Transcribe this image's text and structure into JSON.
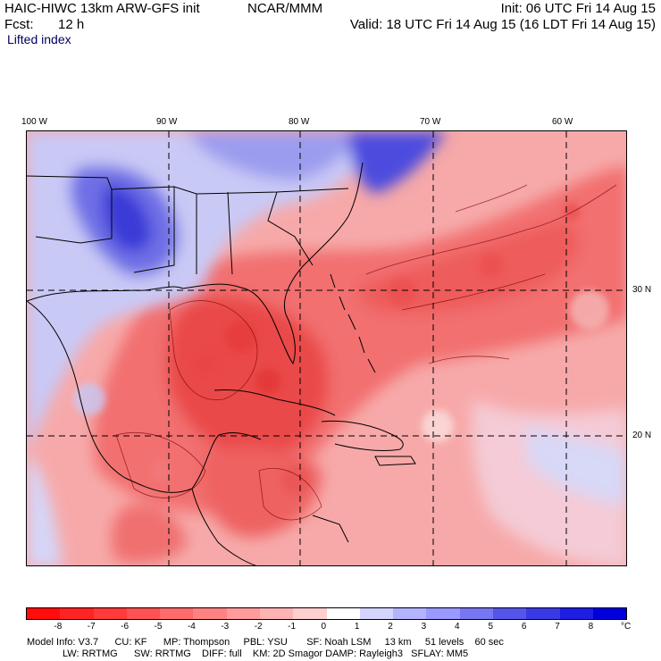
{
  "header": {
    "model_title": "HAIC-HIWC 13km ARW-GFS init",
    "org": "NCAR/MMM",
    "init": "Init: 06 UTC Fri 14 Aug 15",
    "fcst_label": "Fcst:",
    "fcst_value": "12 h",
    "valid": "Valid: 18 UTC Fri 14 Aug 15 (16 LDT Fri 14 Aug 15)",
    "field": "Lifted index"
  },
  "map": {
    "lon_labels": [
      "100 W",
      "90 W",
      "80 W",
      "70 W",
      "60 W"
    ],
    "lat_labels": [
      "30 N",
      "20 N"
    ]
  },
  "colorbar": {
    "ticks": [
      "-8",
      "-7",
      "-6",
      "-5",
      "-4",
      "-3",
      "-2",
      "-1",
      "0",
      "1",
      "2",
      "3",
      "4",
      "5",
      "6",
      "7",
      "8"
    ],
    "unit": "°C",
    "colors": [
      "#ff0d0d",
      "#ff2424",
      "#ff3b3b",
      "#ff5252",
      "#ff6a6a",
      "#ff8282",
      "#ff9b9b",
      "#ffb4b4",
      "#ffcfcf",
      "#ffffff",
      "#d4d4ff",
      "#b3b3ff",
      "#9999ff",
      "#7777f3",
      "#5555ea",
      "#3a3ae4",
      "#1e1ee0",
      "#0000dc"
    ]
  },
  "model_info": {
    "line1": "Model Info: V3.7      CU: KF      MP: Thompson     PBL: YSU       SF: Noah LSM     13 km     51 levels    60 sec",
    "line2": "LW: RRTMG      SW: RRTMG    DIFF: full    KM: 2D Smagor DAMP: Rayleigh3   SFLAY: MM5"
  }
}
